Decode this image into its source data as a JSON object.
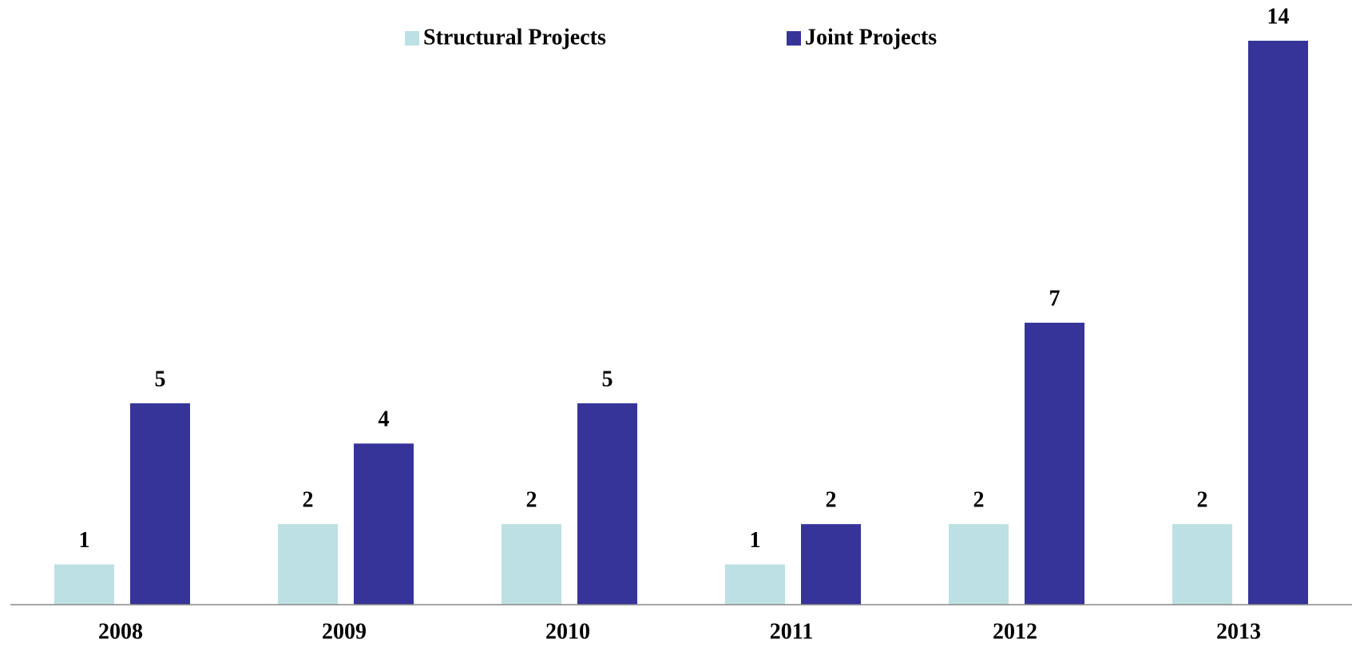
{
  "chart_data": {
    "type": "bar",
    "categories": [
      "2008",
      "2009",
      "2010",
      "2011",
      "2012",
      "2013"
    ],
    "series": [
      {
        "name": "Structural Projects",
        "color": "#bde0e4",
        "values": [
          1,
          2,
          2,
          1,
          2,
          2
        ]
      },
      {
        "name": "Joint Projects",
        "color": "#363499",
        "values": [
          5,
          4,
          5,
          2,
          7,
          14
        ]
      }
    ],
    "ylim": [
      0,
      14
    ],
    "legend": "top"
  }
}
